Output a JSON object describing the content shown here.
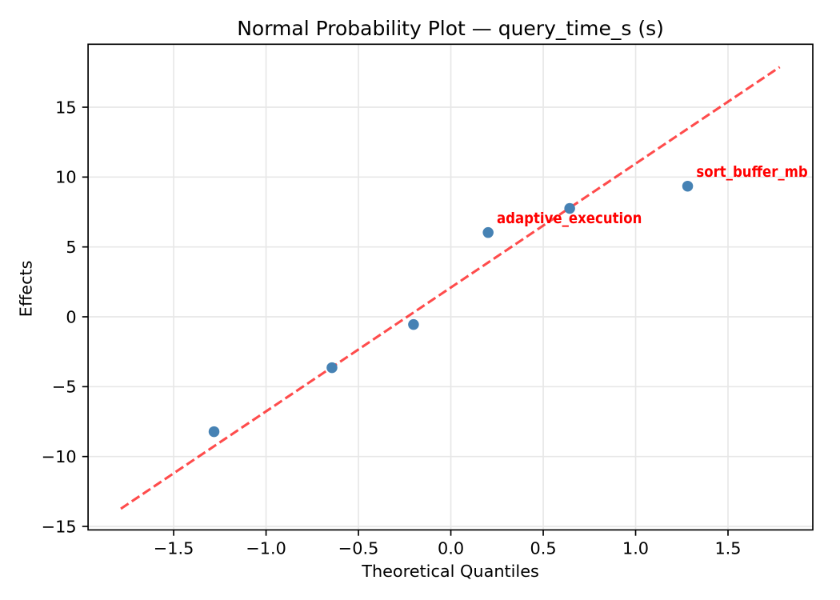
{
  "chart_data": {
    "type": "scatter",
    "title": "Normal Probability Plot — query_time_s (s)",
    "xlabel": "Theoretical Quantiles",
    "ylabel": "Effects",
    "xlim": [
      -1.9632,
      1.9589
    ],
    "ylim": [
      -15.252,
      19.506
    ],
    "xticks": {
      "values": [
        -1.5,
        -1.0,
        -0.5,
        0.0,
        0.5,
        1.0,
        1.5
      ],
      "labels": [
        "−1.5",
        "−1.0",
        "−0.5",
        "0.0",
        "0.5",
        "1.0",
        "1.5"
      ]
    },
    "yticks": {
      "values": [
        -15,
        -10,
        -5,
        0,
        5,
        10,
        15
      ],
      "labels": [
        "−15",
        "−10",
        "−5",
        "0",
        "5",
        "10",
        "15"
      ]
    },
    "grid": true,
    "legend": false,
    "points": [
      {
        "quantile": -1.2816,
        "effect": -8.22,
        "label": ""
      },
      {
        "quantile": -0.6433,
        "effect": -3.64,
        "label": ""
      },
      {
        "quantile": -0.2019,
        "effect": -0.55,
        "label": ""
      },
      {
        "quantile": 0.2019,
        "effect": 6.03,
        "label": "adaptive_execution"
      },
      {
        "quantile": 0.6433,
        "effect": 7.76,
        "label": ""
      },
      {
        "quantile": 1.2816,
        "effect": 9.35,
        "label": "sort_buffer_mb"
      }
    ],
    "fit_line": {
      "x_start": -1.786,
      "x_end": 1.78,
      "slope": 8.864,
      "intercept": 2.096
    },
    "colors": {
      "point": "#4682b4",
      "fit_line": "#ff0000",
      "fit_line_alpha": 0.7,
      "annotation": "#ff0000",
      "grid": "#e7e7e7",
      "axis": "#000000",
      "background": "#ffffff"
    }
  }
}
